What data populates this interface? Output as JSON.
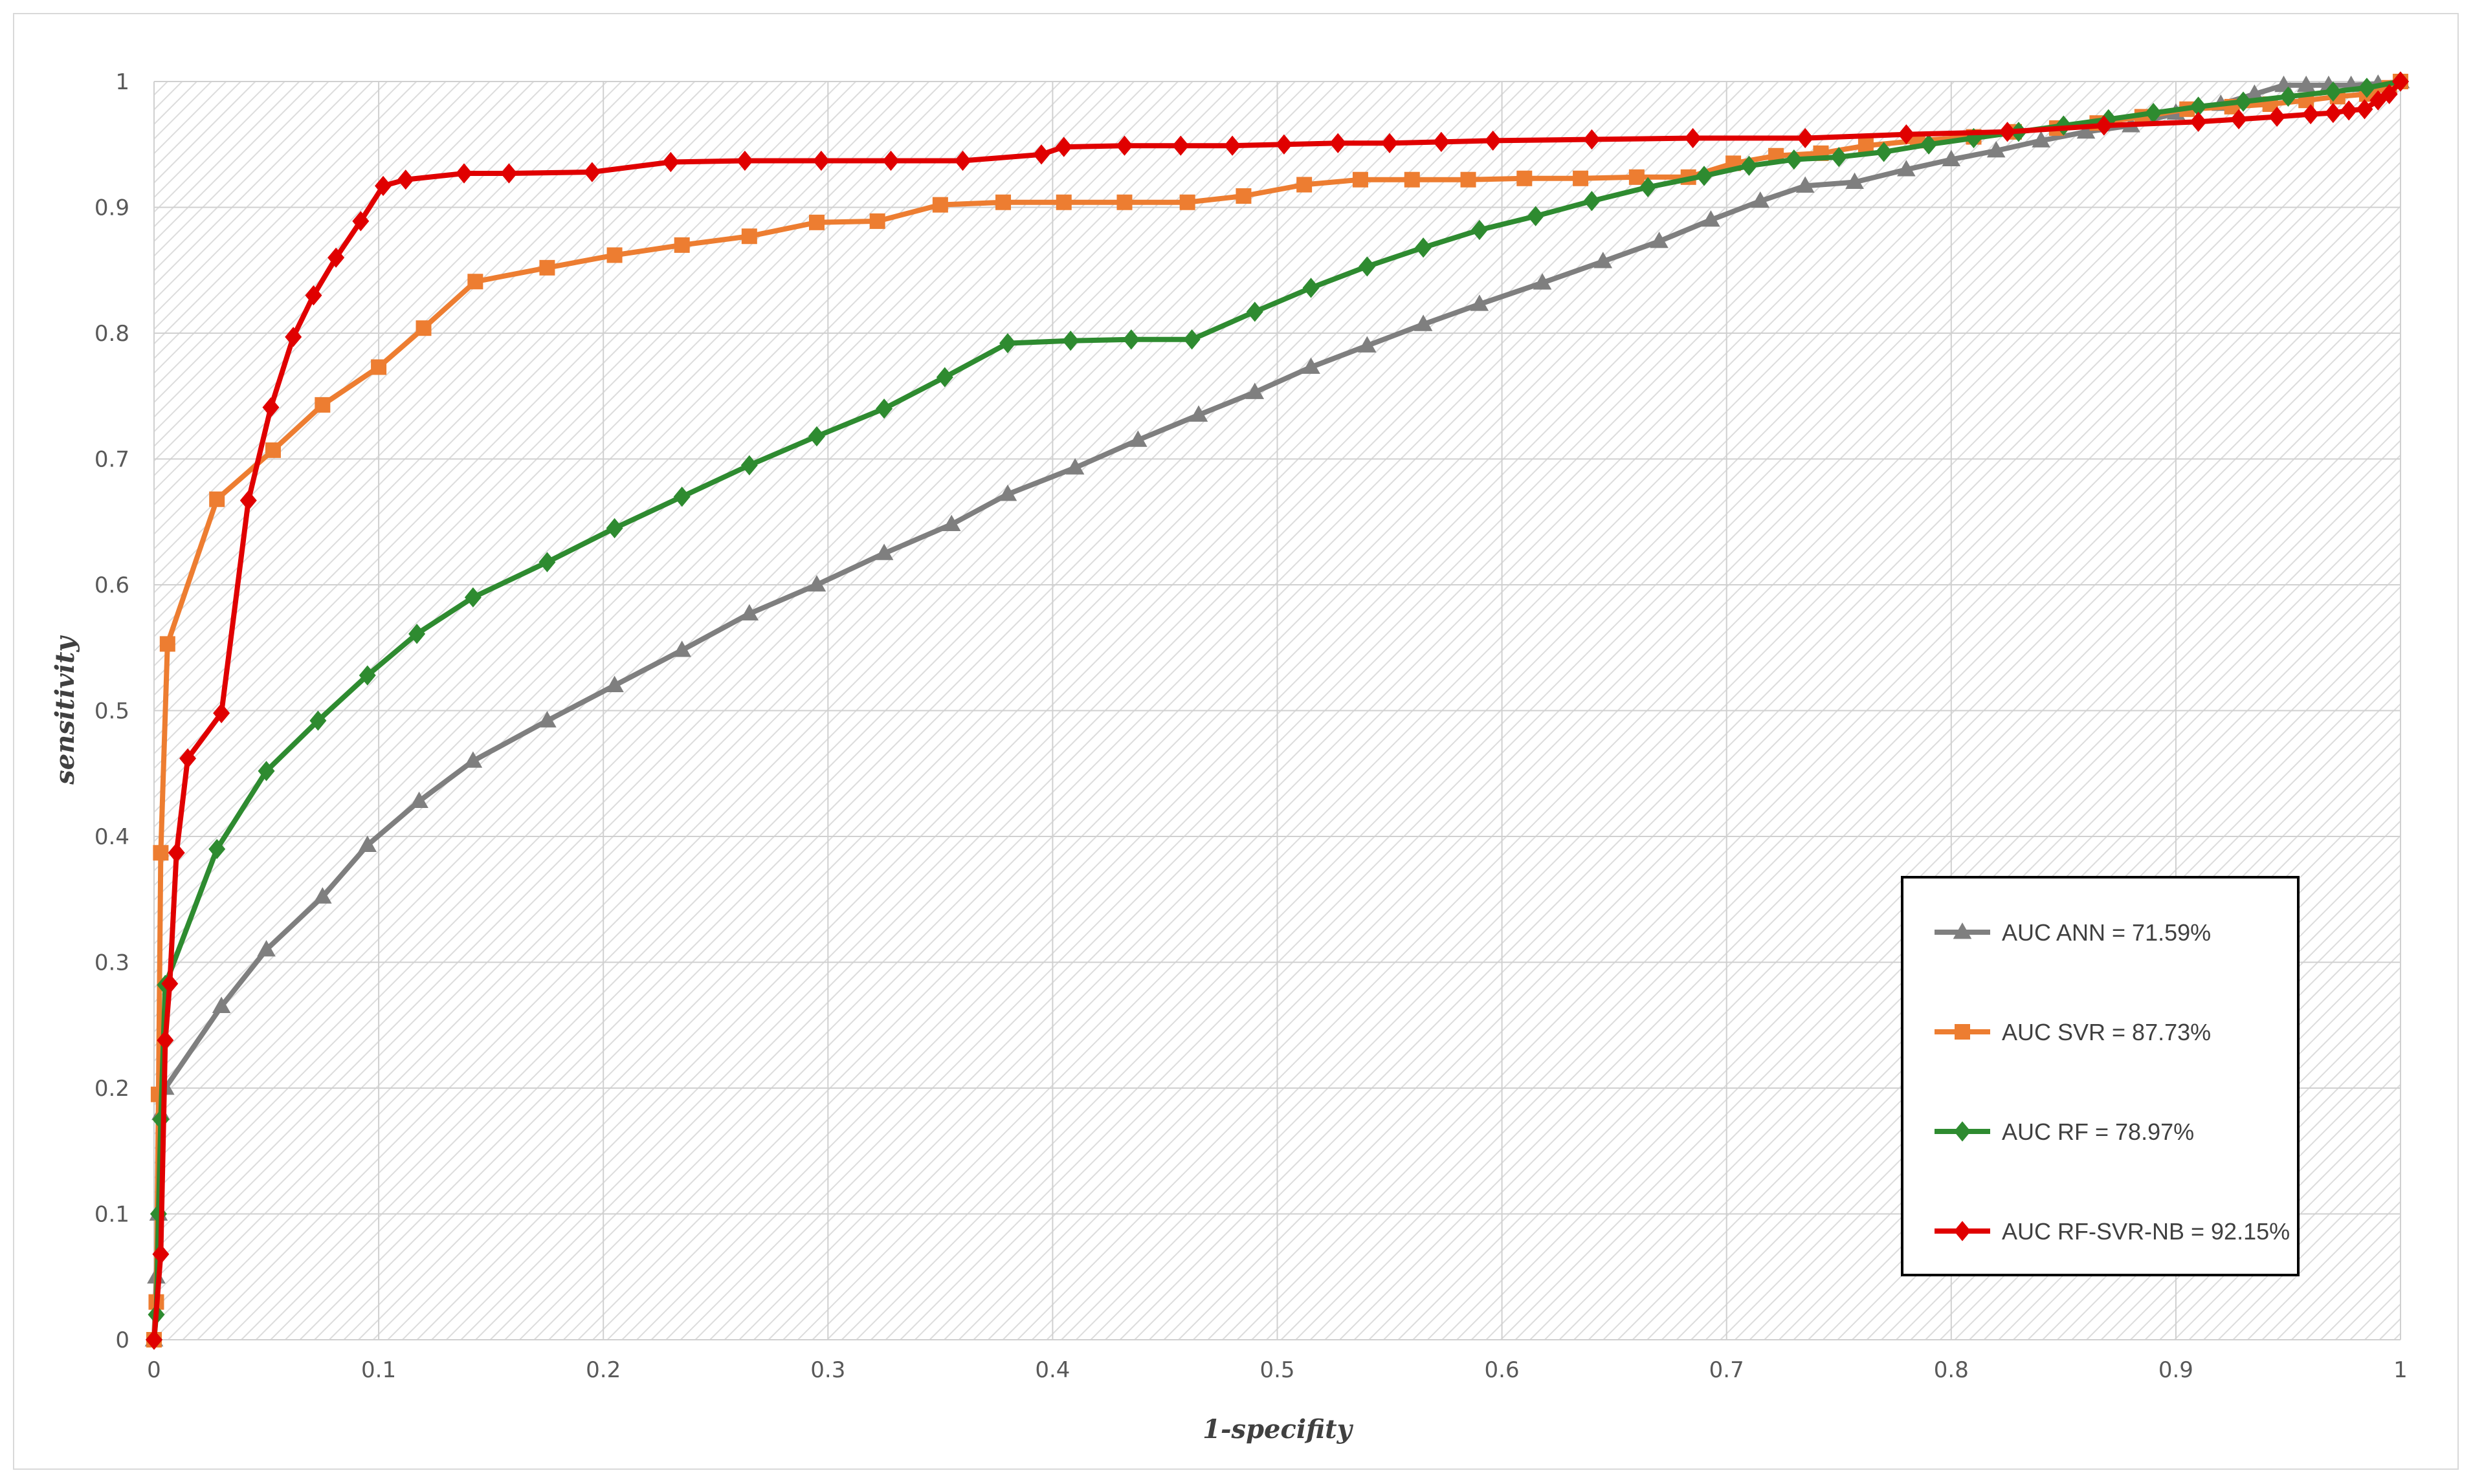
{
  "chart_data": {
    "type": "line",
    "xlabel": "1-specifity",
    "ylabel": "sensitivity",
    "xlim": [
      0,
      1
    ],
    "ylim": [
      0,
      1
    ],
    "x_ticks": [
      "0",
      "0.1",
      "0.2",
      "0.3",
      "0.4",
      "0.5",
      "0.6",
      "0.7",
      "0.8",
      "0.9",
      "1"
    ],
    "y_ticks": [
      "0",
      "0.1",
      "0.2",
      "0.3",
      "0.4",
      "0.5",
      "0.6",
      "0.7",
      "0.8",
      "0.9",
      "1"
    ],
    "grid": true,
    "legend_position": "bottom-right",
    "series": [
      {
        "name": "AUC ANN = 71.59%",
        "color": "#7f7f7f",
        "marker": "triangle",
        "points": [
          [
            0,
            0.0
          ],
          [
            0.001,
            0.05
          ],
          [
            0.002,
            0.1
          ],
          [
            0.003,
            0.18
          ],
          [
            0.005,
            0.2
          ],
          [
            0.03,
            0.265
          ],
          [
            0.05,
            0.31
          ],
          [
            0.075,
            0.352
          ],
          [
            0.095,
            0.393
          ],
          [
            0.118,
            0.428
          ],
          [
            0.142,
            0.46
          ],
          [
            0.175,
            0.492
          ],
          [
            0.205,
            0.52
          ],
          [
            0.235,
            0.548
          ],
          [
            0.265,
            0.577
          ],
          [
            0.295,
            0.6
          ],
          [
            0.325,
            0.625
          ],
          [
            0.355,
            0.648
          ],
          [
            0.38,
            0.672
          ],
          [
            0.41,
            0.693
          ],
          [
            0.438,
            0.715
          ],
          [
            0.465,
            0.735
          ],
          [
            0.49,
            0.753
          ],
          [
            0.515,
            0.773
          ],
          [
            0.54,
            0.79
          ],
          [
            0.565,
            0.807
          ],
          [
            0.59,
            0.823
          ],
          [
            0.618,
            0.84
          ],
          [
            0.645,
            0.857
          ],
          [
            0.67,
            0.873
          ],
          [
            0.693,
            0.89
          ],
          [
            0.715,
            0.905
          ],
          [
            0.735,
            0.917
          ],
          [
            0.757,
            0.92
          ],
          [
            0.78,
            0.93
          ],
          [
            0.8,
            0.938
          ],
          [
            0.82,
            0.945
          ],
          [
            0.84,
            0.953
          ],
          [
            0.86,
            0.96
          ],
          [
            0.88,
            0.965
          ],
          [
            0.9,
            0.975
          ],
          [
            0.92,
            0.982
          ],
          [
            0.935,
            0.99
          ],
          [
            0.948,
            0.997
          ],
          [
            0.958,
            0.997
          ],
          [
            0.968,
            0.997
          ],
          [
            0.978,
            0.997
          ],
          [
            0.99,
            0.998
          ],
          [
            1.0,
            1.0
          ]
        ]
      },
      {
        "name": "AUC SVR = 87.73%",
        "color": "#ed7d31",
        "marker": "square",
        "points": [
          [
            0,
            0.0
          ],
          [
            0.001,
            0.03
          ],
          [
            0.002,
            0.195
          ],
          [
            0.003,
            0.387
          ],
          [
            0.006,
            0.553
          ],
          [
            0.028,
            0.668
          ],
          [
            0.053,
            0.707
          ],
          [
            0.075,
            0.743
          ],
          [
            0.1,
            0.773
          ],
          [
            0.12,
            0.804
          ],
          [
            0.143,
            0.841
          ],
          [
            0.175,
            0.852
          ],
          [
            0.205,
            0.862
          ],
          [
            0.235,
            0.87
          ],
          [
            0.265,
            0.877
          ],
          [
            0.295,
            0.888
          ],
          [
            0.322,
            0.889
          ],
          [
            0.35,
            0.902
          ],
          [
            0.378,
            0.904
          ],
          [
            0.405,
            0.904
          ],
          [
            0.432,
            0.904
          ],
          [
            0.46,
            0.904
          ],
          [
            0.485,
            0.909
          ],
          [
            0.512,
            0.918
          ],
          [
            0.537,
            0.922
          ],
          [
            0.56,
            0.922
          ],
          [
            0.585,
            0.922
          ],
          [
            0.61,
            0.923
          ],
          [
            0.635,
            0.923
          ],
          [
            0.66,
            0.924
          ],
          [
            0.683,
            0.924
          ],
          [
            0.703,
            0.935
          ],
          [
            0.722,
            0.941
          ],
          [
            0.742,
            0.943
          ],
          [
            0.762,
            0.949
          ],
          [
            0.785,
            0.953
          ],
          [
            0.81,
            0.956
          ],
          [
            0.828,
            0.96
          ],
          [
            0.847,
            0.963
          ],
          [
            0.865,
            0.967
          ],
          [
            0.885,
            0.972
          ],
          [
            0.905,
            0.978
          ],
          [
            0.925,
            0.98
          ],
          [
            0.942,
            0.982
          ],
          [
            0.958,
            0.985
          ],
          [
            0.972,
            0.988
          ],
          [
            0.985,
            0.99
          ],
          [
            0.995,
            0.995
          ],
          [
            1.0,
            1.0
          ]
        ]
      },
      {
        "name": "AUC RF = 78.97%",
        "color": "#2e8b30",
        "marker": "diamond",
        "points": [
          [
            0,
            0.0
          ],
          [
            0.001,
            0.02
          ],
          [
            0.002,
            0.1
          ],
          [
            0.003,
            0.175
          ],
          [
            0.005,
            0.282
          ],
          [
            0.028,
            0.39
          ],
          [
            0.05,
            0.452
          ],
          [
            0.073,
            0.492
          ],
          [
            0.095,
            0.528
          ],
          [
            0.117,
            0.561
          ],
          [
            0.142,
            0.59
          ],
          [
            0.175,
            0.618
          ],
          [
            0.205,
            0.645
          ],
          [
            0.235,
            0.67
          ],
          [
            0.265,
            0.695
          ],
          [
            0.295,
            0.718
          ],
          [
            0.325,
            0.74
          ],
          [
            0.352,
            0.765
          ],
          [
            0.38,
            0.792
          ],
          [
            0.408,
            0.794
          ],
          [
            0.435,
            0.795
          ],
          [
            0.462,
            0.795
          ],
          [
            0.49,
            0.817
          ],
          [
            0.515,
            0.836
          ],
          [
            0.54,
            0.853
          ],
          [
            0.565,
            0.868
          ],
          [
            0.59,
            0.882
          ],
          [
            0.615,
            0.893
          ],
          [
            0.64,
            0.905
          ],
          [
            0.665,
            0.916
          ],
          [
            0.69,
            0.925
          ],
          [
            0.71,
            0.933
          ],
          [
            0.73,
            0.938
          ],
          [
            0.75,
            0.94
          ],
          [
            0.77,
            0.944
          ],
          [
            0.79,
            0.95
          ],
          [
            0.81,
            0.955
          ],
          [
            0.83,
            0.96
          ],
          [
            0.85,
            0.965
          ],
          [
            0.87,
            0.97
          ],
          [
            0.89,
            0.975
          ],
          [
            0.91,
            0.98
          ],
          [
            0.93,
            0.984
          ],
          [
            0.95,
            0.988
          ],
          [
            0.97,
            0.992
          ],
          [
            0.985,
            0.995
          ],
          [
            1.0,
            1.0
          ]
        ]
      },
      {
        "name": "AUC RF-SVR-NB = 92.15%",
        "color": "#e00000",
        "marker": "diamond",
        "points": [
          [
            0,
            0.0
          ],
          [
            0.003,
            0.068
          ],
          [
            0.005,
            0.238
          ],
          [
            0.007,
            0.283
          ],
          [
            0.01,
            0.387
          ],
          [
            0.015,
            0.462
          ],
          [
            0.03,
            0.498
          ],
          [
            0.042,
            0.667
          ],
          [
            0.052,
            0.741
          ],
          [
            0.062,
            0.797
          ],
          [
            0.071,
            0.83
          ],
          [
            0.081,
            0.86
          ],
          [
            0.092,
            0.889
          ],
          [
            0.102,
            0.917
          ],
          [
            0.112,
            0.922
          ],
          [
            0.138,
            0.927
          ],
          [
            0.158,
            0.927
          ],
          [
            0.195,
            0.928
          ],
          [
            0.23,
            0.936
          ],
          [
            0.263,
            0.937
          ],
          [
            0.297,
            0.937
          ],
          [
            0.328,
            0.937
          ],
          [
            0.36,
            0.937
          ],
          [
            0.395,
            0.942
          ],
          [
            0.405,
            0.948
          ],
          [
            0.432,
            0.949
          ],
          [
            0.457,
            0.949
          ],
          [
            0.48,
            0.949
          ],
          [
            0.503,
            0.95
          ],
          [
            0.527,
            0.951
          ],
          [
            0.55,
            0.951
          ],
          [
            0.573,
            0.952
          ],
          [
            0.596,
            0.953
          ],
          [
            0.64,
            0.954
          ],
          [
            0.685,
            0.955
          ],
          [
            0.735,
            0.955
          ],
          [
            0.78,
            0.958
          ],
          [
            0.825,
            0.96
          ],
          [
            0.868,
            0.965
          ],
          [
            0.91,
            0.968
          ],
          [
            0.928,
            0.97
          ],
          [
            0.945,
            0.972
          ],
          [
            0.96,
            0.974
          ],
          [
            0.97,
            0.975
          ],
          [
            0.977,
            0.977
          ],
          [
            0.984,
            0.978
          ],
          [
            0.99,
            0.985
          ],
          [
            0.995,
            0.99
          ],
          [
            1.0,
            1.0
          ]
        ]
      }
    ]
  }
}
